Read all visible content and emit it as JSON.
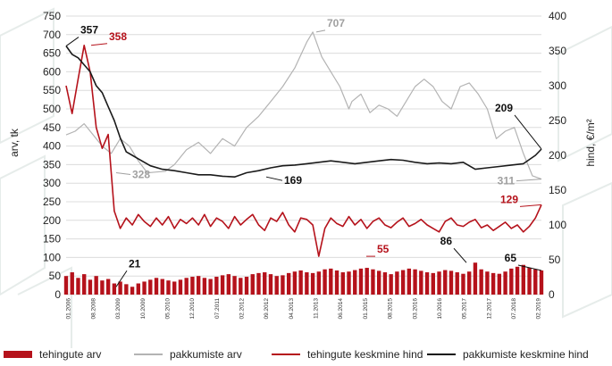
{
  "chart_data": {
    "type": "bar+line",
    "ylabel": "arv, tk",
    "y2label": "hind, €/m²",
    "ylim": [
      0,
      750
    ],
    "y2lim": [
      0,
      400
    ],
    "yticks": [
      0,
      50,
      100,
      150,
      200,
      250,
      300,
      350,
      400,
      450,
      500,
      550,
      600,
      650,
      700,
      750
    ],
    "y2ticks": [
      0,
      50,
      100,
      150,
      200,
      250,
      300,
      350,
      400
    ],
    "xticks": [
      "01.2006",
      "08.2008",
      "03.2009",
      "10.2009",
      "05.2010",
      "12.2010",
      "07.2011",
      "02.2012",
      "09.2012",
      "04.2013",
      "11.2013",
      "06.2014",
      "01.2015",
      "08.2015",
      "03.2016",
      "10.2016",
      "05.2017",
      "12.2017",
      "07.2018",
      "02.2019"
    ],
    "legend": [
      "tehingute arv",
      "pakkumiste arv",
      "tehingute keskmine hind",
      "pakkumiste keskmine hind"
    ],
    "colors": {
      "tehingute_arv": "#b5121b",
      "pakkumiste_arv": "#b3b3b3",
      "tehingute_hind": "#b5121b",
      "pakkumiste_hind": "#1a1a1a"
    },
    "annotations": [
      {
        "text": "357",
        "series": "pakkumiste keskmine hind",
        "x": "01.2006",
        "y": 357,
        "color": "#111111"
      },
      {
        "text": "358",
        "series": "tehingute keskmine hind",
        "x": "08.2008",
        "y": 358,
        "color": "#b5121b"
      },
      {
        "text": "707",
        "series": "pakkumiste arv",
        "x": "11.2013",
        "y": 707,
        "color": "#a0a0a0"
      },
      {
        "text": "328",
        "series": "pakkumiste arv",
        "x": "03.2009",
        "y": 328,
        "color": "#a0a0a0"
      },
      {
        "text": "169",
        "series": "pakkumiste keskmine hind",
        "x": "09.2012",
        "y": 169,
        "color": "#111111"
      },
      {
        "text": "209",
        "series": "pakkumiste keskmine hind",
        "x": "02.2019",
        "y": 209,
        "color": "#111111"
      },
      {
        "text": "311",
        "series": "pakkumiste arv",
        "x": "02.2019",
        "y": 311,
        "color": "#a0a0a0"
      },
      {
        "text": "129",
        "series": "tehingute keskmine hind",
        "x": "02.2019",
        "y": 129,
        "color": "#b5121b"
      },
      {
        "text": "21",
        "series": "tehingute arv",
        "x": "03.2009",
        "y": 21,
        "color": "#111111"
      },
      {
        "text": "55",
        "series": "tehingute keskmine hind",
        "x": "01.2015",
        "y": 55,
        "color": "#b5121b"
      },
      {
        "text": "86",
        "series": "tehingute arv",
        "x": "05.2017",
        "y": 86,
        "color": "#111111"
      },
      {
        "text": "65",
        "series": "tehingute arv",
        "x": "02.2019",
        "y": 65,
        "color": "#111111"
      }
    ],
    "series": [
      {
        "name": "tehingute arv",
        "axis": "left",
        "type": "bar",
        "x": [
          0,
          2,
          4,
          6,
          8,
          10,
          12,
          14,
          16,
          18,
          20,
          22,
          24,
          26,
          28,
          30,
          32,
          34,
          36,
          38,
          40,
          42,
          44,
          46,
          48,
          50,
          52,
          54,
          56,
          58,
          60,
          62,
          64,
          66,
          68,
          70,
          72,
          74,
          76,
          78,
          80,
          82,
          84,
          86,
          88,
          90,
          92,
          94,
          96,
          98,
          100,
          102,
          104,
          106,
          108,
          110,
          112,
          114,
          116,
          118,
          120,
          122,
          124,
          126,
          128,
          130,
          132,
          134,
          136,
          138,
          140,
          142,
          144,
          146,
          148,
          150,
          152,
          154,
          156,
          158
        ],
        "y": [
          50,
          60,
          45,
          55,
          40,
          50,
          38,
          42,
          30,
          35,
          28,
          21,
          30,
          35,
          40,
          45,
          42,
          38,
          35,
          40,
          45,
          48,
          50,
          45,
          42,
          48,
          52,
          55,
          50,
          45,
          48,
          55,
          58,
          60,
          55,
          50,
          52,
          58,
          62,
          65,
          60,
          58,
          62,
          68,
          70,
          65,
          60,
          62,
          66,
          70,
          72,
          68,
          64,
          60,
          55,
          62,
          66,
          70,
          68,
          64,
          60,
          58,
          62,
          66,
          64,
          60,
          56,
          62,
          86,
          68,
          62,
          58,
          56,
          62,
          70,
          75,
          80,
          72,
          68,
          65
        ]
      },
      {
        "name": "pakkumiste arv",
        "axis": "left",
        "type": "line",
        "x": [
          0,
          3,
          6,
          9,
          12,
          15,
          18,
          21,
          24,
          27,
          30,
          33,
          36,
          40,
          44,
          48,
          52,
          56,
          60,
          64,
          68,
          72,
          76,
          80,
          82,
          85,
          88,
          91,
          94,
          95,
          98,
          101,
          104,
          107,
          110,
          113,
          116,
          119,
          122,
          125,
          128,
          131,
          134,
          137,
          140,
          143,
          146,
          149,
          152,
          155,
          158
        ],
        "y": [
          430,
          440,
          460,
          430,
          400,
          380,
          420,
          400,
          360,
          328,
          330,
          332,
          350,
          390,
          410,
          380,
          420,
          400,
          450,
          480,
          520,
          560,
          610,
          680,
          707,
          640,
          600,
          560,
          500,
          520,
          540,
          490,
          510,
          500,
          480,
          520,
          560,
          580,
          560,
          520,
          500,
          560,
          570,
          540,
          500,
          420,
          440,
          450,
          380,
          320,
          311
        ]
      },
      {
        "name": "tehingute keskmine hind",
        "axis": "right",
        "type": "line",
        "x": [
          0,
          2,
          4,
          6,
          8,
          10,
          12,
          14,
          16,
          18,
          20,
          22,
          24,
          26,
          28,
          30,
          32,
          34,
          36,
          38,
          40,
          42,
          44,
          46,
          48,
          50,
          52,
          54,
          56,
          58,
          60,
          62,
          64,
          66,
          68,
          70,
          72,
          74,
          76,
          78,
          80,
          82,
          84,
          86,
          88,
          90,
          92,
          94,
          96,
          98,
          100,
          102,
          104,
          106,
          108,
          110,
          112,
          114,
          116,
          118,
          120,
          122,
          124,
          126,
          128,
          130,
          132,
          134,
          136,
          138,
          140,
          142,
          144,
          146,
          148,
          150,
          152,
          154,
          156,
          158
        ],
        "y": [
          300,
          260,
          310,
          358,
          320,
          240,
          210,
          230,
          120,
          95,
          110,
          100,
          115,
          105,
          98,
          110,
          100,
          112,
          95,
          108,
          102,
          110,
          100,
          115,
          98,
          110,
          105,
          95,
          112,
          100,
          108,
          115,
          100,
          92,
          110,
          105,
          118,
          100,
          90,
          110,
          108,
          100,
          55,
          95,
          110,
          102,
          98,
          112,
          100,
          108,
          95,
          105,
          110,
          100,
          96,
          104,
          110,
          98,
          102,
          108,
          100,
          95,
          90,
          105,
          110,
          100,
          98,
          104,
          108,
          96,
          100,
          92,
          98,
          104,
          95,
          100,
          90,
          98,
          110,
          129
        ]
      },
      {
        "name": "pakkumiste keskmine hind",
        "axis": "right",
        "type": "line",
        "x": [
          0,
          2,
          4,
          6,
          8,
          10,
          12,
          14,
          16,
          18,
          20,
          22,
          24,
          28,
          32,
          36,
          40,
          44,
          48,
          52,
          56,
          60,
          64,
          68,
          72,
          76,
          80,
          84,
          88,
          92,
          96,
          100,
          104,
          108,
          112,
          116,
          120,
          124,
          128,
          132,
          136,
          140,
          144,
          148,
          152,
          156,
          158
        ],
        "y": [
          357,
          345,
          340,
          330,
          320,
          300,
          290,
          270,
          250,
          225,
          205,
          200,
          195,
          185,
          180,
          178,
          175,
          172,
          172,
          170,
          169,
          175,
          178,
          182,
          185,
          186,
          188,
          190,
          192,
          190,
          188,
          190,
          192,
          194,
          193,
          190,
          188,
          189,
          188,
          190,
          180,
          182,
          184,
          186,
          188,
          200,
          209
        ]
      }
    ],
    "x_range": [
      0,
      158
    ]
  }
}
